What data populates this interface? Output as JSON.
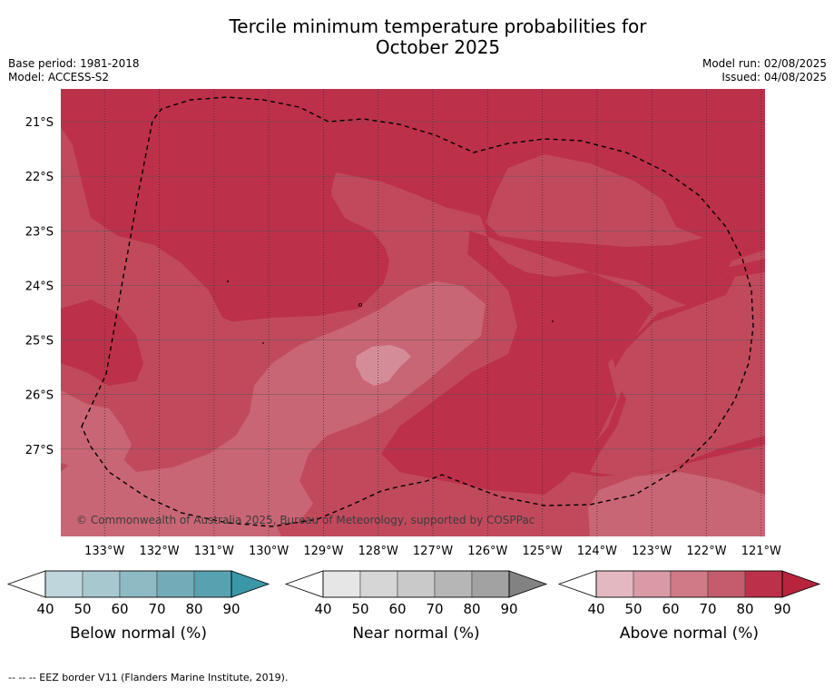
{
  "title_line1": "Tercile minimum temperature probabilities for",
  "title_line2": "October 2025",
  "base_period": "Base period: 1981-2018",
  "model": "Model: ACCESS-S2",
  "model_run": "Model run: 02/08/2025",
  "issued": "Issued: 04/08/2025",
  "credit": "© Commonwealth of Australia 2025, Bureau of Meteorology, supported by COSPPac",
  "footnote": "--  --  -- EEZ border V11 (Flanders Marine Institute, 2019).",
  "map": {
    "lon_range": [
      -133.8,
      -120.93
    ],
    "lat_range": [
      -28.6,
      -20.4
    ],
    "lat_ticks": [
      -21,
      -22,
      -23,
      -24,
      -25,
      -26,
      -27
    ],
    "lat_tick_labels": [
      "21°S",
      "22°S",
      "23°S",
      "24°S",
      "25°S",
      "26°S",
      "27°S"
    ],
    "lon_ticks": [
      -133,
      -132,
      -131,
      -130,
      -129,
      -128,
      -127,
      -126,
      -125,
      -124,
      -123,
      -122,
      -121
    ],
    "lon_tick_labels": [
      "133°W",
      "132°W",
      "131°W",
      "130°W",
      "129°W",
      "128°W",
      "127°W",
      "126°W",
      "125°W",
      "124°W",
      "123°W",
      "122°W",
      "121°W"
    ],
    "field_category": "Above normal",
    "probability_classes_percent": [
      {
        "range": [
          50,
          60
        ],
        "color": "#d48c99"
      },
      {
        "range": [
          60,
          70
        ],
        "color": "#c96675"
      },
      {
        "range": [
          70,
          80
        ],
        "color": "#c04a5c"
      },
      {
        "range": [
          80,
          90
        ],
        "color": "#bd3049"
      }
    ]
  },
  "colorbars": [
    {
      "title": "Below normal (%)",
      "ticks": [
        "40",
        "50",
        "60",
        "70",
        "80",
        "90"
      ],
      "colors": [
        "#bed6dc",
        "#a7c8cf",
        "#8ebac4",
        "#74abb8",
        "#58a1b0"
      ],
      "over_color": "#3a97a8"
    },
    {
      "title": "Near normal (%)",
      "ticks": [
        "40",
        "50",
        "60",
        "70",
        "80",
        "90"
      ],
      "colors": [
        "#e6e6e6",
        "#d6d6d6",
        "#c9c9c9",
        "#b6b6b6",
        "#a2a2a2"
      ],
      "over_color": "#828282"
    },
    {
      "title": "Above normal (%)",
      "ticks": [
        "40",
        "50",
        "60",
        "70",
        "80",
        "90"
      ],
      "colors": [
        "#e4b8c0",
        "#d99aa5",
        "#cf7a86",
        "#c55c6d",
        "#bd3049"
      ],
      "over_color": "#b8243e"
    }
  ]
}
